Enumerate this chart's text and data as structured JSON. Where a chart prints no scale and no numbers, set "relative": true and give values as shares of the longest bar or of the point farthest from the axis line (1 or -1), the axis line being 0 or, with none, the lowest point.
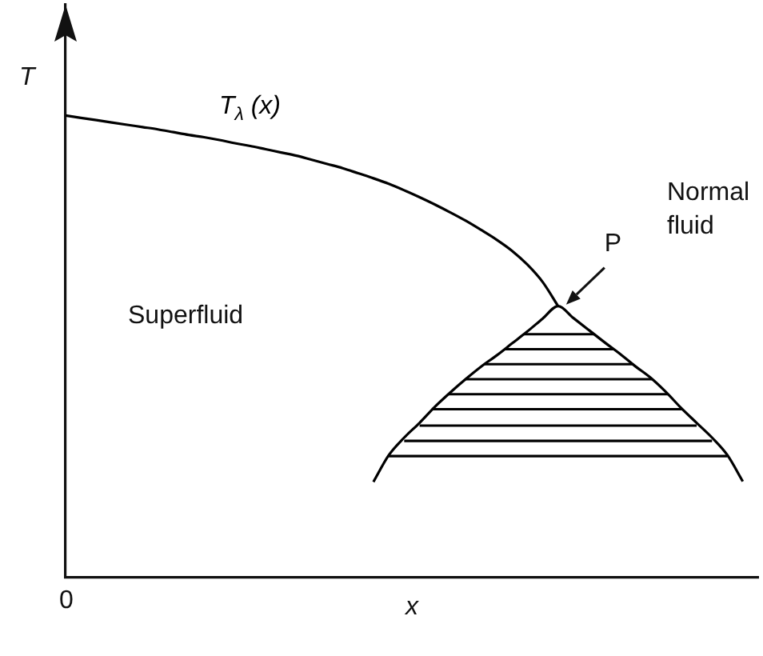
{
  "chart_data": {
    "type": "line",
    "relative": true,
    "xlabel": "x",
    "ylabel": "T",
    "categories": [
      null,
      null,
      null,
      null,
      null,
      null,
      null,
      null,
      null,
      null,
      null,
      null,
      null,
      null,
      null,
      null,
      null,
      null,
      null,
      null,
      null,
      null,
      null,
      null,
      null,
      null,
      null,
      null,
      null,
      null,
      null,
      null,
      null,
      null,
      null,
      null,
      null,
      null,
      null,
      null,
      null,
      null,
      null,
      null,
      null,
      null
    ],
    "series": [
      {
        "name": "T$_{λ}$ (x)",
        "color": "#000000",
        "values": [
          1.0,
          0.995,
          0.99,
          0.985,
          0.98,
          0.975,
          0.97,
          0.964,
          0.958,
          0.953,
          0.947,
          0.94,
          0.934,
          0.927,
          0.92,
          0.913,
          0.904,
          0.895,
          0.886,
          0.875,
          0.864,
          0.852,
          0.838,
          0.823,
          0.807,
          0.79,
          0.772,
          0.752,
          0.731,
          0.707,
          0.677,
          0.639,
          0.587,
          null,
          null,
          null,
          null,
          null,
          null,
          null,
          null,
          null,
          null,
          null,
          null,
          null
        ]
      },
      {
        "color": "#000000",
        "values": [
          null,
          null,
          null,
          null,
          null,
          null,
          null,
          null,
          null,
          null,
          null,
          null,
          null,
          null,
          null,
          null,
          null,
          null,
          null,
          null,
          0.206,
          0.264,
          0.302,
          0.334,
          0.369,
          0.4,
          0.429,
          0.456,
          0.48,
          0.506,
          0.532,
          0.56,
          0.587,
          0.561,
          0.535,
          0.509,
          0.484,
          0.457,
          0.432,
          0.401,
          0.366,
          0.334,
          0.302,
          0.264,
          0.207,
          null
        ]
      },
      {
        "color": "#000000",
        "values": [
          null,
          null,
          null,
          null,
          null,
          null,
          null,
          null,
          null,
          null,
          null,
          null,
          null,
          null,
          null,
          null,
          null,
          null,
          null,
          null,
          null,
          null,
          null,
          0.328,
          0.328,
          0.328,
          0.328,
          0.328,
          0.328,
          0.328,
          0.328,
          0.328,
          0.328,
          0.328,
          0.328,
          0.328,
          0.328,
          0.328,
          0.328,
          0.328,
          0.328,
          0.328,
          null,
          null,
          null,
          null
        ]
      },
      {
        "color": "#000000",
        "values": [
          null,
          null,
          null,
          null,
          null,
          null,
          null,
          null,
          null,
          null,
          null,
          null,
          null,
          null,
          null,
          null,
          null,
          null,
          null,
          null,
          null,
          null,
          0.295,
          0.295,
          0.295,
          0.295,
          0.295,
          0.295,
          0.295,
          0.295,
          0.295,
          0.295,
          0.295,
          0.295,
          0.295,
          0.295,
          0.295,
          0.295,
          0.295,
          0.295,
          0.295,
          0.295,
          0.295,
          null,
          null,
          null
        ]
      },
      {
        "color": "#000000",
        "values": [
          null,
          null,
          null,
          null,
          null,
          null,
          null,
          null,
          null,
          null,
          null,
          null,
          null,
          null,
          null,
          null,
          null,
          null,
          null,
          null,
          null,
          0.262,
          0.262,
          0.262,
          0.262,
          0.262,
          0.262,
          0.262,
          0.262,
          0.262,
          0.262,
          0.262,
          0.262,
          0.262,
          0.262,
          0.262,
          0.262,
          0.262,
          0.262,
          0.262,
          0.262,
          0.262,
          0.262,
          0.262,
          null,
          null
        ]
      }
    ],
    "annotations": [
      "Superfluid",
      "Normal fluid",
      "P",
      "0"
    ]
  }
}
